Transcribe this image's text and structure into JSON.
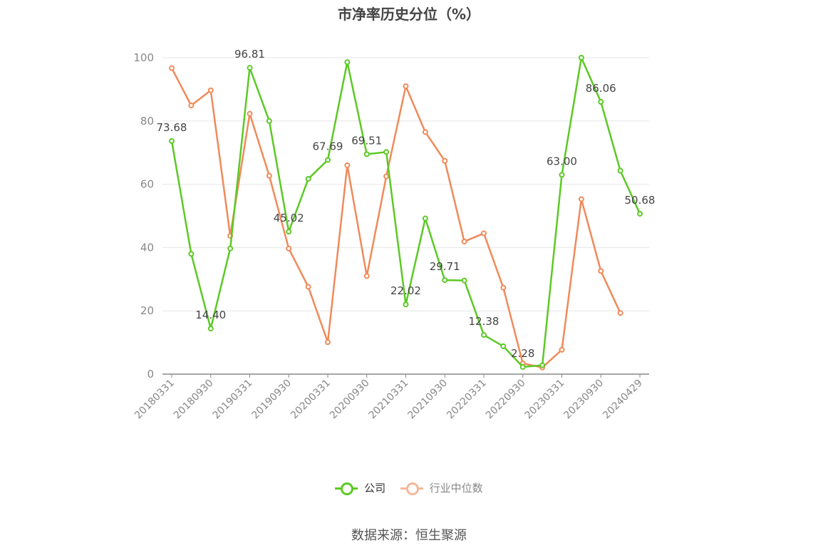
{
  "title": "市净率历史分位（%）",
  "source": "数据来源：恒生聚源",
  "legend": {
    "company": "公司",
    "industry": "行业中位数"
  },
  "colors": {
    "company": "#5cc925",
    "industry": "#f08a5a",
    "industry_legend": "#f5b79c",
    "grid": "#e6e6e6",
    "axis": "#888888"
  },
  "chart_data": {
    "type": "line",
    "title": "市净率历史分位（%）",
    "ylim": [
      0,
      100
    ],
    "yticks": [
      0,
      20,
      40,
      60,
      80,
      100
    ],
    "grid": true,
    "legend_position": "bottom",
    "x_tick_labels": [
      "20180331",
      "20180930",
      "20190331",
      "20190930",
      "20200331",
      "20200930",
      "20210331",
      "20210930",
      "20220331",
      "20220930",
      "20230331",
      "20230930",
      "20240429"
    ],
    "series": [
      {
        "name": "公司",
        "values": [
          73.68,
          38.0,
          14.4,
          39.7,
          96.81,
          80.0,
          45.02,
          61.7,
          67.69,
          98.6,
          69.51,
          70.2,
          22.02,
          49.2,
          29.71,
          29.6,
          12.38,
          8.8,
          2.28,
          2.8,
          63.0,
          100.0,
          86.06,
          64.3,
          50.68
        ],
        "labels": [
          "73.68",
          "",
          "14.40",
          "",
          "96.81",
          "",
          "45.02",
          "",
          "67.69",
          "",
          "69.51",
          "",
          "22.02",
          "",
          "29.71",
          "",
          "12.38",
          "",
          "2.28",
          "",
          "63.00",
          "",
          "86.06",
          "",
          "50.68"
        ]
      },
      {
        "name": "行业中位数",
        "values": [
          96.7,
          84.9,
          89.7,
          43.7,
          82.3,
          62.7,
          39.7,
          27.6,
          10.1,
          66.0,
          31.0,
          62.5,
          91.0,
          76.5,
          67.4,
          41.9,
          44.5,
          27.3,
          3.4,
          2.1,
          7.7,
          55.3,
          32.6,
          19.3,
          null
        ]
      }
    ]
  }
}
